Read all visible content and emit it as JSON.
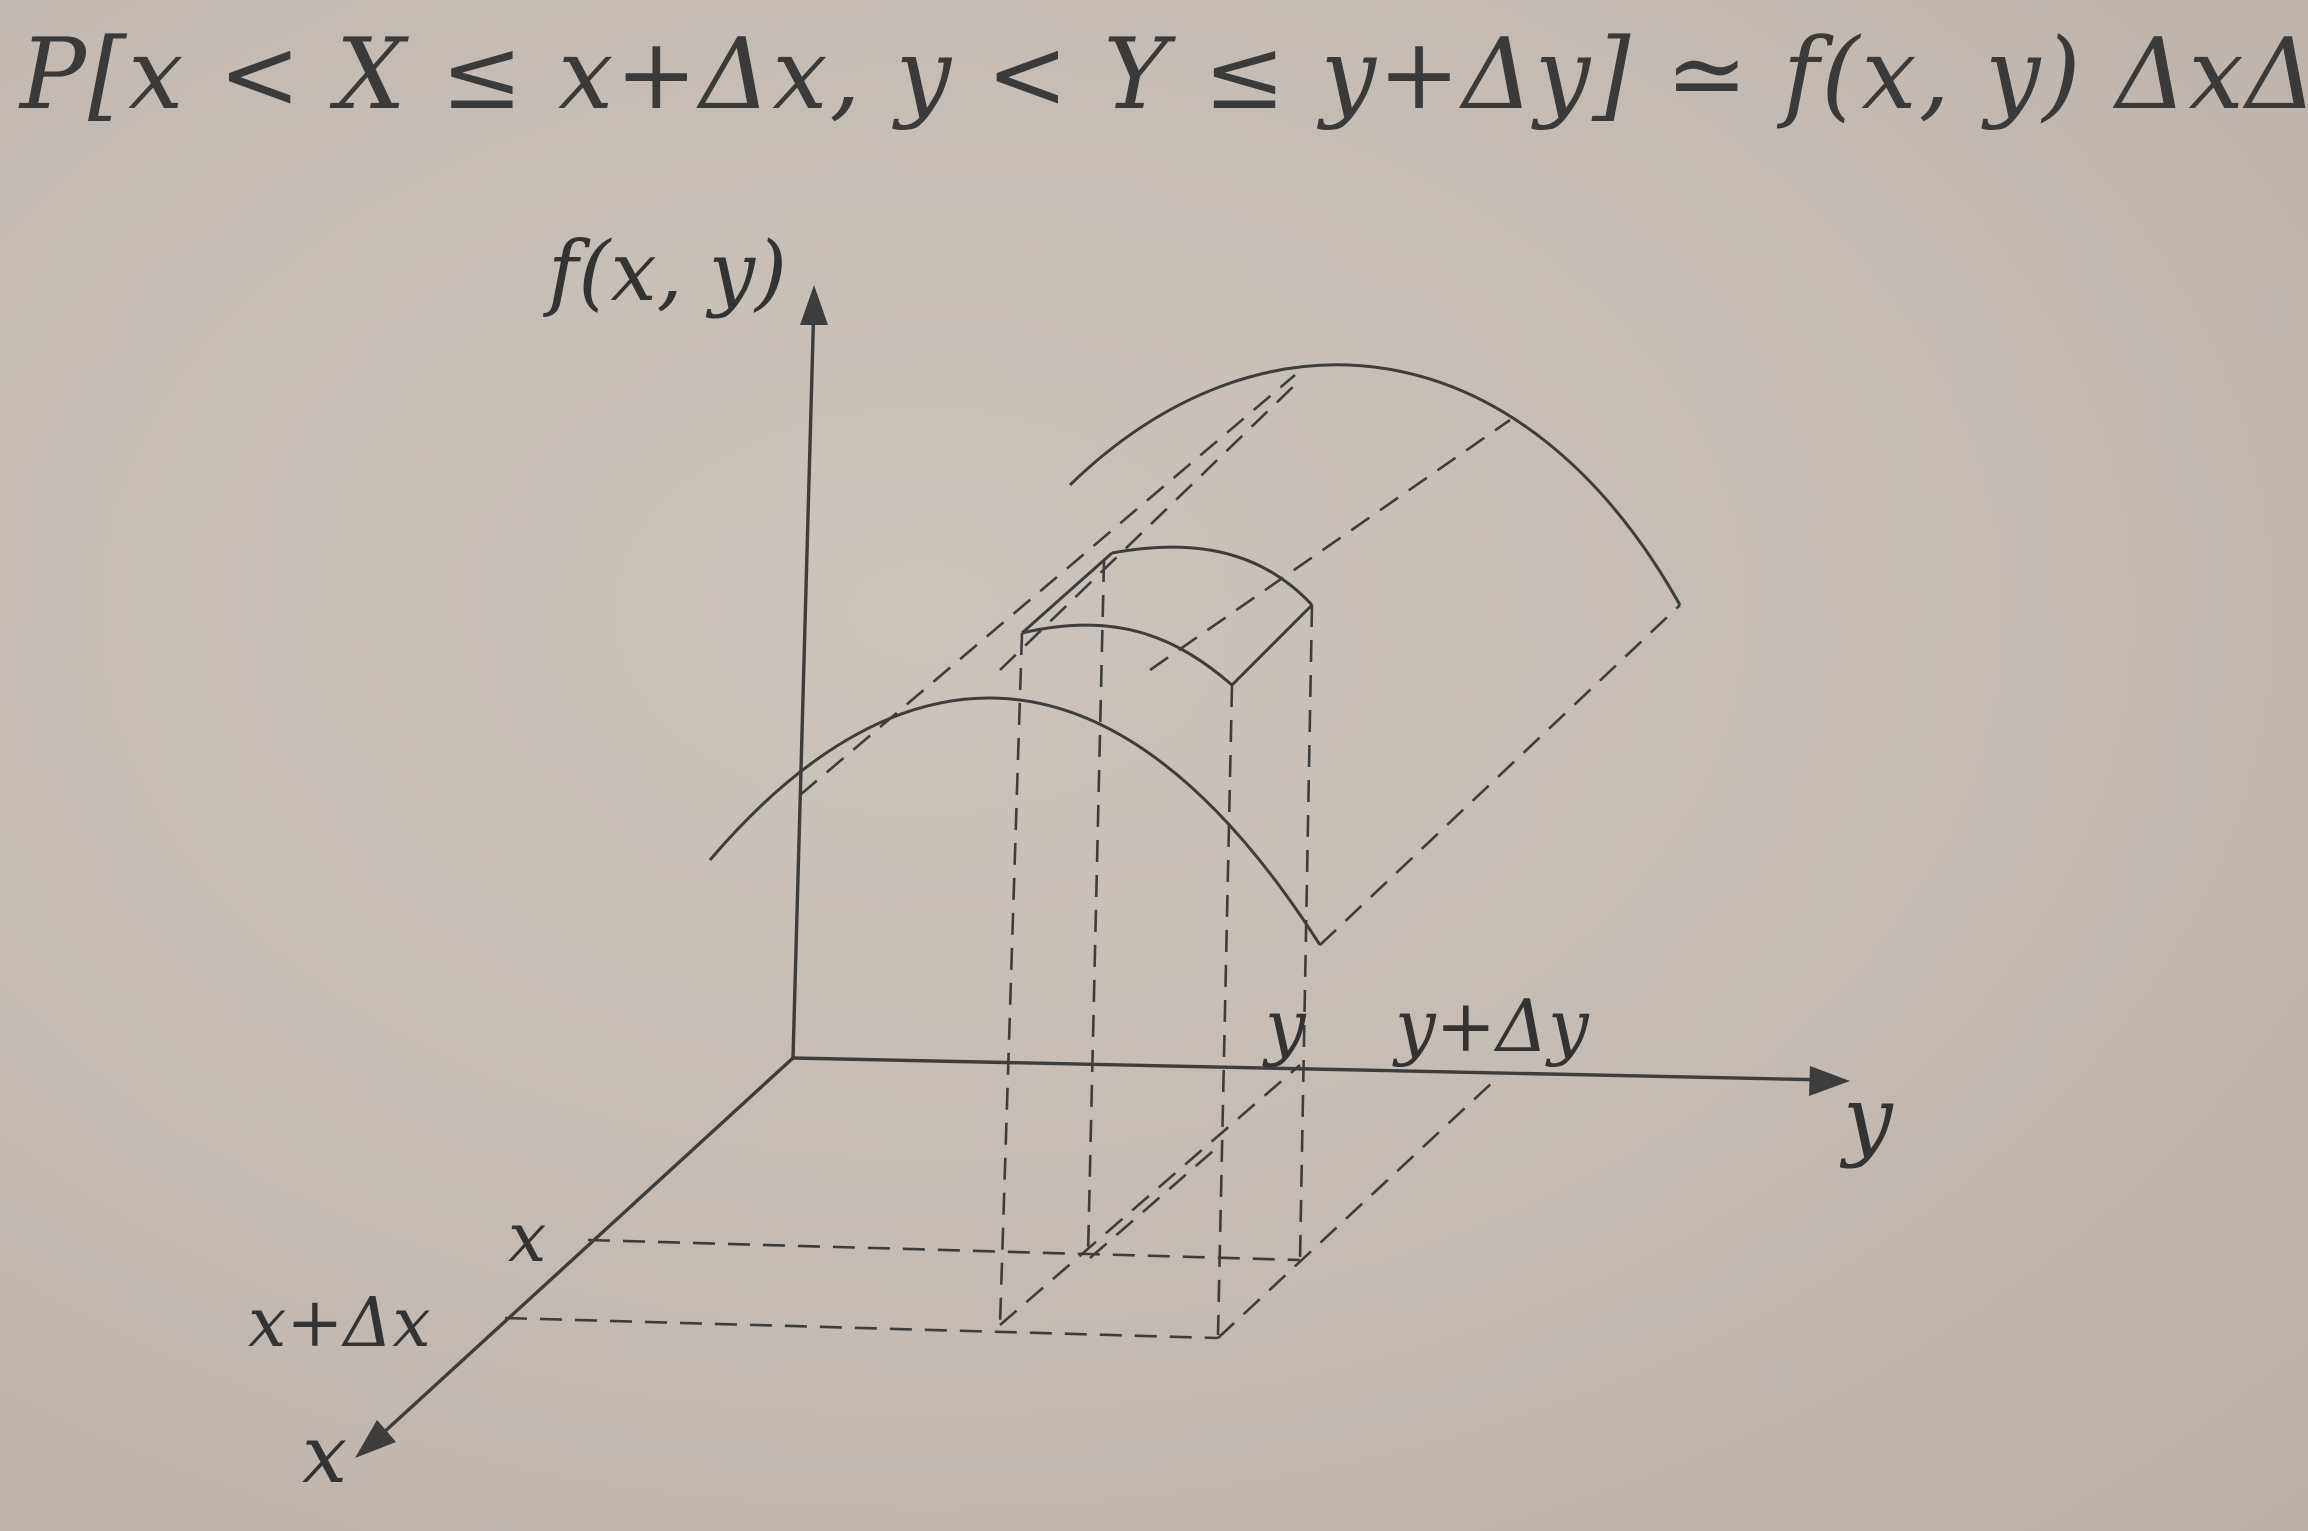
{
  "formula": "P[x < X ≤ x+Δx, y < Y ≤ y+Δy] ≃ f(x, y) ΔxΔy",
  "axes": {
    "vertical_label": "f(x, y)",
    "y_label": "y",
    "x_label": "x"
  },
  "ticks": {
    "y": "y",
    "y_plus_dy": "y+Δy",
    "x": "x",
    "x_plus_dx": "x+Δx"
  }
}
